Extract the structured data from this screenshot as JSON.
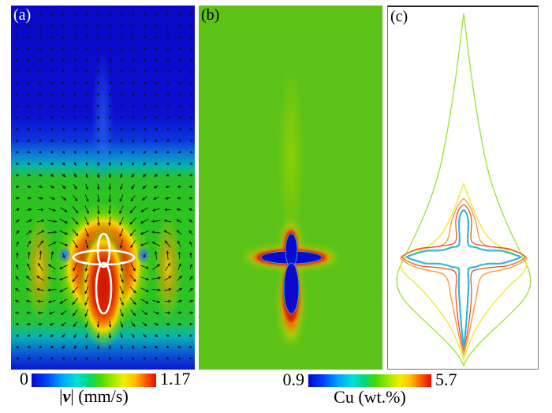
{
  "panels": {
    "a": {
      "label": "(a)",
      "description": "velocity magnitude field with flow vectors and solid-liquid interface contour"
    },
    "b": {
      "label": "(b)",
      "description": "Cu concentration field around the dendrite"
    },
    "c": {
      "label": "(c)",
      "description": "nested Cu iso-concentration contours around the dendrite"
    }
  },
  "colorbar_velocity": {
    "min": "0",
    "max": "1.17",
    "label_open_bar": "|",
    "label_symbol": "v",
    "label_rest": "| (mm/s)"
  },
  "colorbar_cu": {
    "min": "0.9",
    "max": "5.7",
    "label": "Cu (wt.%)"
  },
  "colors": {
    "field_deep_blue": "#0909c8",
    "field_green": "#5cc217",
    "hot_red": "#d81e00",
    "dendrite_blue": "#0a0ace",
    "interface_white": "#ffffff",
    "interface_cyan": "#2fb8d8",
    "interface_speckle_green": "#5ecc3a",
    "interface_speckle_blue": "#2255cc",
    "contour_green": "#a0e43c",
    "contour_yellow": "#f6e630",
    "contour_orange": "#f89b3c",
    "contour_red": "#f05018",
    "arrow_black": "#141414"
  },
  "chart_data": [
    {
      "type": "heatmap",
      "panel": "(a)",
      "title": "Velocity magnitude field with convection around an equiaxed dendrite",
      "colormap": "jet",
      "value_range": [
        0,
        1.17
      ],
      "units": "mm/s",
      "colorbar_label": "|v| (mm/s)",
      "overlays": [
        "black velocity vector arrows on a regular grid",
        "white cross-shaped dendrite interface contour at the center"
      ],
      "flow_pattern": {
        "description": "two counter-rotating convection rolls flanking the dendrite; downward flow along the vertical centerline toward the crystal, upward return flow along both side walls",
        "vortex_centers_frac": [
          {
            "x": 0.29,
            "y": 0.69,
            "sense": "clockwise"
          },
          {
            "x": 0.72,
            "y": 0.69,
            "sense": "counterclockwise"
          }
        ],
        "low_velocity_regions": "top of the domain and the two vortex cores (blue)",
        "high_velocity_regions": "red zone enclosing the dendrite, approaching 1.17 mm/s"
      }
    },
    {
      "type": "heatmap",
      "panel": "(b)",
      "title": "Cu concentration field",
      "colormap": "jet",
      "value_range": [
        0.9,
        5.7
      ],
      "units": "wt.%",
      "colorbar_label": "Cu (wt.%)",
      "features": {
        "dendrite": "cross-shaped solid at low Cu concentration (blue, about 0.9 wt.%)",
        "boundary_layer": "solute-enriched red/orange halo (up to about 5.7 wt.%) hugging the interface",
        "far_field": "uniform green melt (mid-range concentration)",
        "plume": "faint enriched plume rising above the dendrite tip"
      }
    },
    {
      "type": "contour",
      "panel": "(c)",
      "title": "Cu iso-concentration contour lines",
      "contours_outer_to_inner": [
        "green-yellow",
        "yellow",
        "orange",
        "red",
        "speckled cyan/green interface line"
      ],
      "shape": "nested four-pointed star contours around the cross-shaped dendrite; the outermost contour stretches upward into a solute plume reaching the top of the frame and tapers to a point at the bottom"
    }
  ]
}
